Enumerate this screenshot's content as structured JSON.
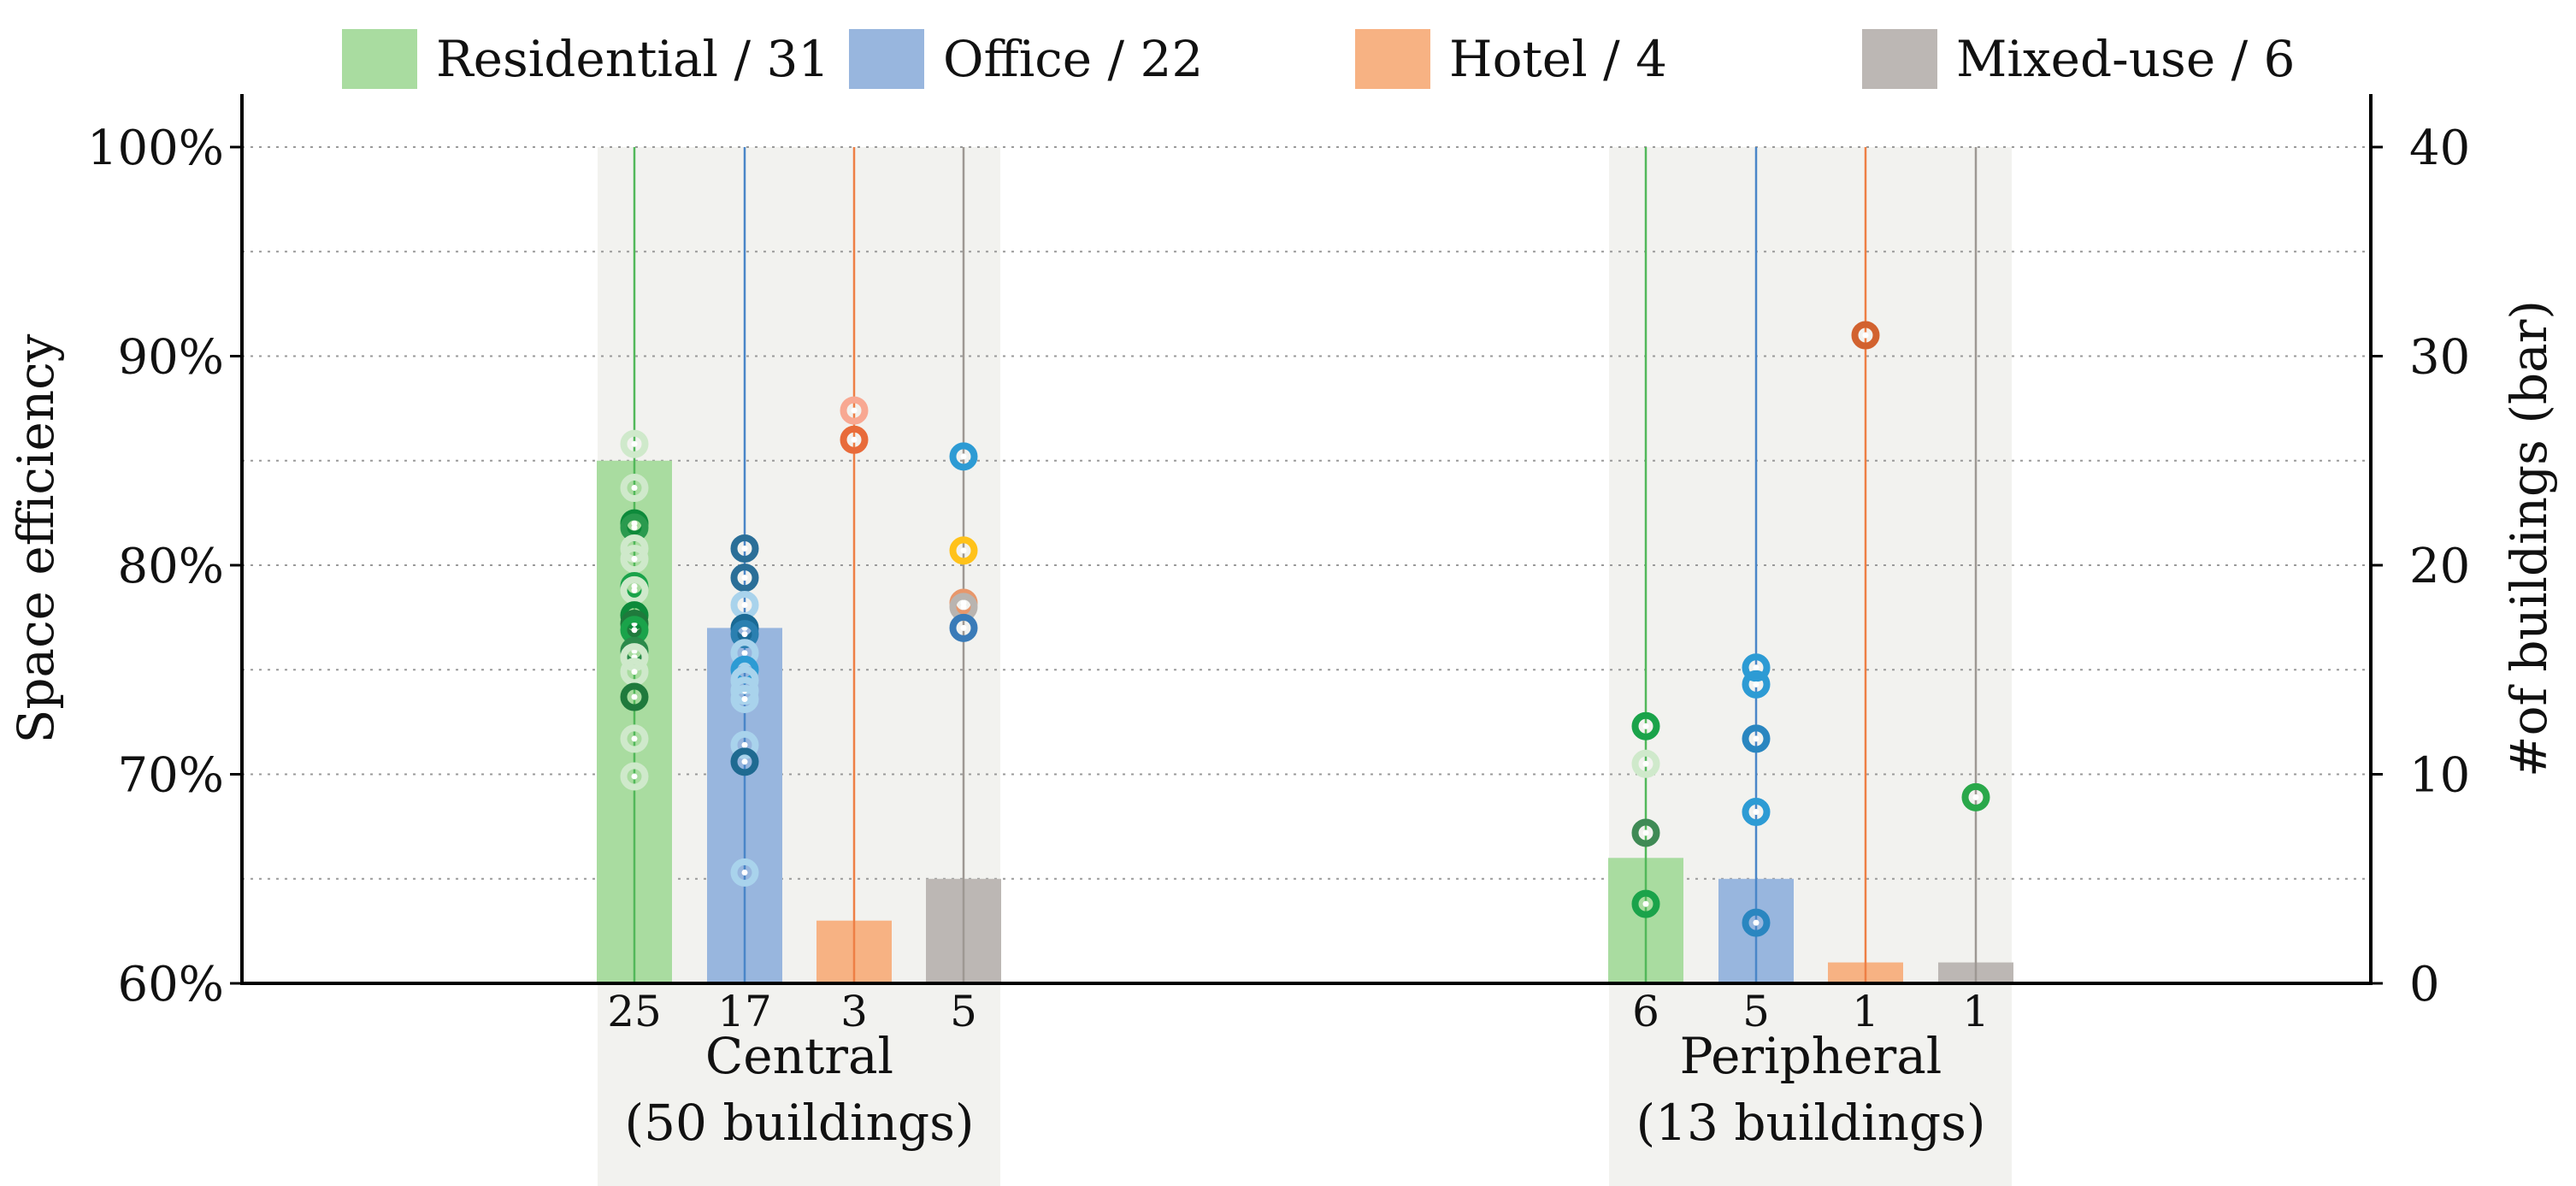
{
  "chart_data": {
    "type": "bar",
    "title": "",
    "ylabel_left": "Space efficiency",
    "ylabel_right": "#of buildings (bar)",
    "ylim_left": [
      60,
      100
    ],
    "ylim_right": [
      0,
      40
    ],
    "left_ticks": [
      "60%",
      "70%",
      "80%",
      "90%",
      "100%"
    ],
    "right_ticks": [
      "0",
      "10",
      "20",
      "30",
      "40"
    ],
    "legend": [
      {
        "label": "Residential / 31",
        "color": "#a9dca0"
      },
      {
        "label": "Office / 22",
        "color": "#98b6de"
      },
      {
        "label": "Hotel / 4",
        "color": "#f7b283"
      },
      {
        "label": "Mixed-use / 6",
        "color": "#bcb7b4"
      }
    ],
    "groups": [
      {
        "name_line1": "Central",
        "name_line2": "(50 buildings)",
        "categories": [
          "Residential",
          "Office",
          "Hotel",
          "Mixed-use"
        ],
        "counts": [
          25,
          17,
          3,
          5
        ],
        "count_labels": [
          "25",
          "17",
          "3",
          "5"
        ],
        "points": [
          [
            85.8,
            83.7,
            82.0,
            81.8,
            80.8,
            80.3,
            79.0,
            78.8,
            77.6,
            77.2,
            76.9,
            75.9,
            75.6,
            74.9,
            73.7,
            71.7,
            69.9
          ],
          [
            80.8,
            79.4,
            78.1,
            77.0,
            76.7,
            75.8,
            75.0,
            74.5,
            74.0,
            73.6,
            71.4,
            70.6,
            65.3
          ],
          [
            87.4,
            86.0
          ],
          [
            85.2,
            80.7,
            78.2,
            78.0,
            77.0
          ]
        ],
        "point_colors": [
          [
            "#cfe9cb",
            "#cfe9cb",
            "#0d8a3a",
            "#2a9a4e",
            "#cfe9cb",
            "#cfe9cb",
            "#1aa34a",
            "#cfe9cb",
            "#0d8a3a",
            "#1f7a3c",
            "#1aa34a",
            "#2b8a4a",
            "#cfe9cb",
            "#cfe9cb",
            "#1f7a3c",
            "#cfe9cb",
            "#cfe9cb"
          ],
          [
            "#2b6f98",
            "#2b6f98",
            "#a9d3ec",
            "#1a6a95",
            "#2a7fb0",
            "#a9d3ec",
            "#2d9bd4",
            "#a9d3ec",
            "#a9d3ec",
            "#a9d3ec",
            "#a9d3ec",
            "#1f6a91",
            "#a9d3ec"
          ],
          [
            "#f8a892",
            "#e86b3a"
          ],
          [
            "#2d9bd4",
            "#ffc21a",
            "#e8976b",
            "#b9b4b0",
            "#3a7bb8"
          ]
        ]
      },
      {
        "name_line1": "Peripheral",
        "name_line2": "(13 buildings)",
        "categories": [
          "Residential",
          "Office",
          "Hotel",
          "Mixed-use"
        ],
        "counts": [
          6,
          5,
          1,
          1
        ],
        "count_labels": [
          "6",
          "5",
          "1",
          "1"
        ],
        "points": [
          [
            72.3,
            70.5,
            67.2,
            63.8
          ],
          [
            75.1,
            74.3,
            71.7,
            68.2,
            62.9
          ],
          [
            91.0
          ],
          [
            68.9
          ]
        ],
        "point_colors": [
          [
            "#1aa34a",
            "#cfe9cb",
            "#3f8a55",
            "#1aa34a"
          ],
          [
            "#2d9bd4",
            "#2d9bd4",
            "#2a86c0",
            "#2d9bd4",
            "#2a86c0"
          ],
          [
            "#d2622f"
          ],
          [
            "#2aa84a"
          ]
        ]
      }
    ],
    "series_colors": {
      "bar": [
        "#a9dca0",
        "#98b6de",
        "#f7b283",
        "#bcb7b4"
      ],
      "line": [
        "#52b85a",
        "#4a86c8",
        "#ee7f45",
        "#9e9893"
      ]
    }
  }
}
